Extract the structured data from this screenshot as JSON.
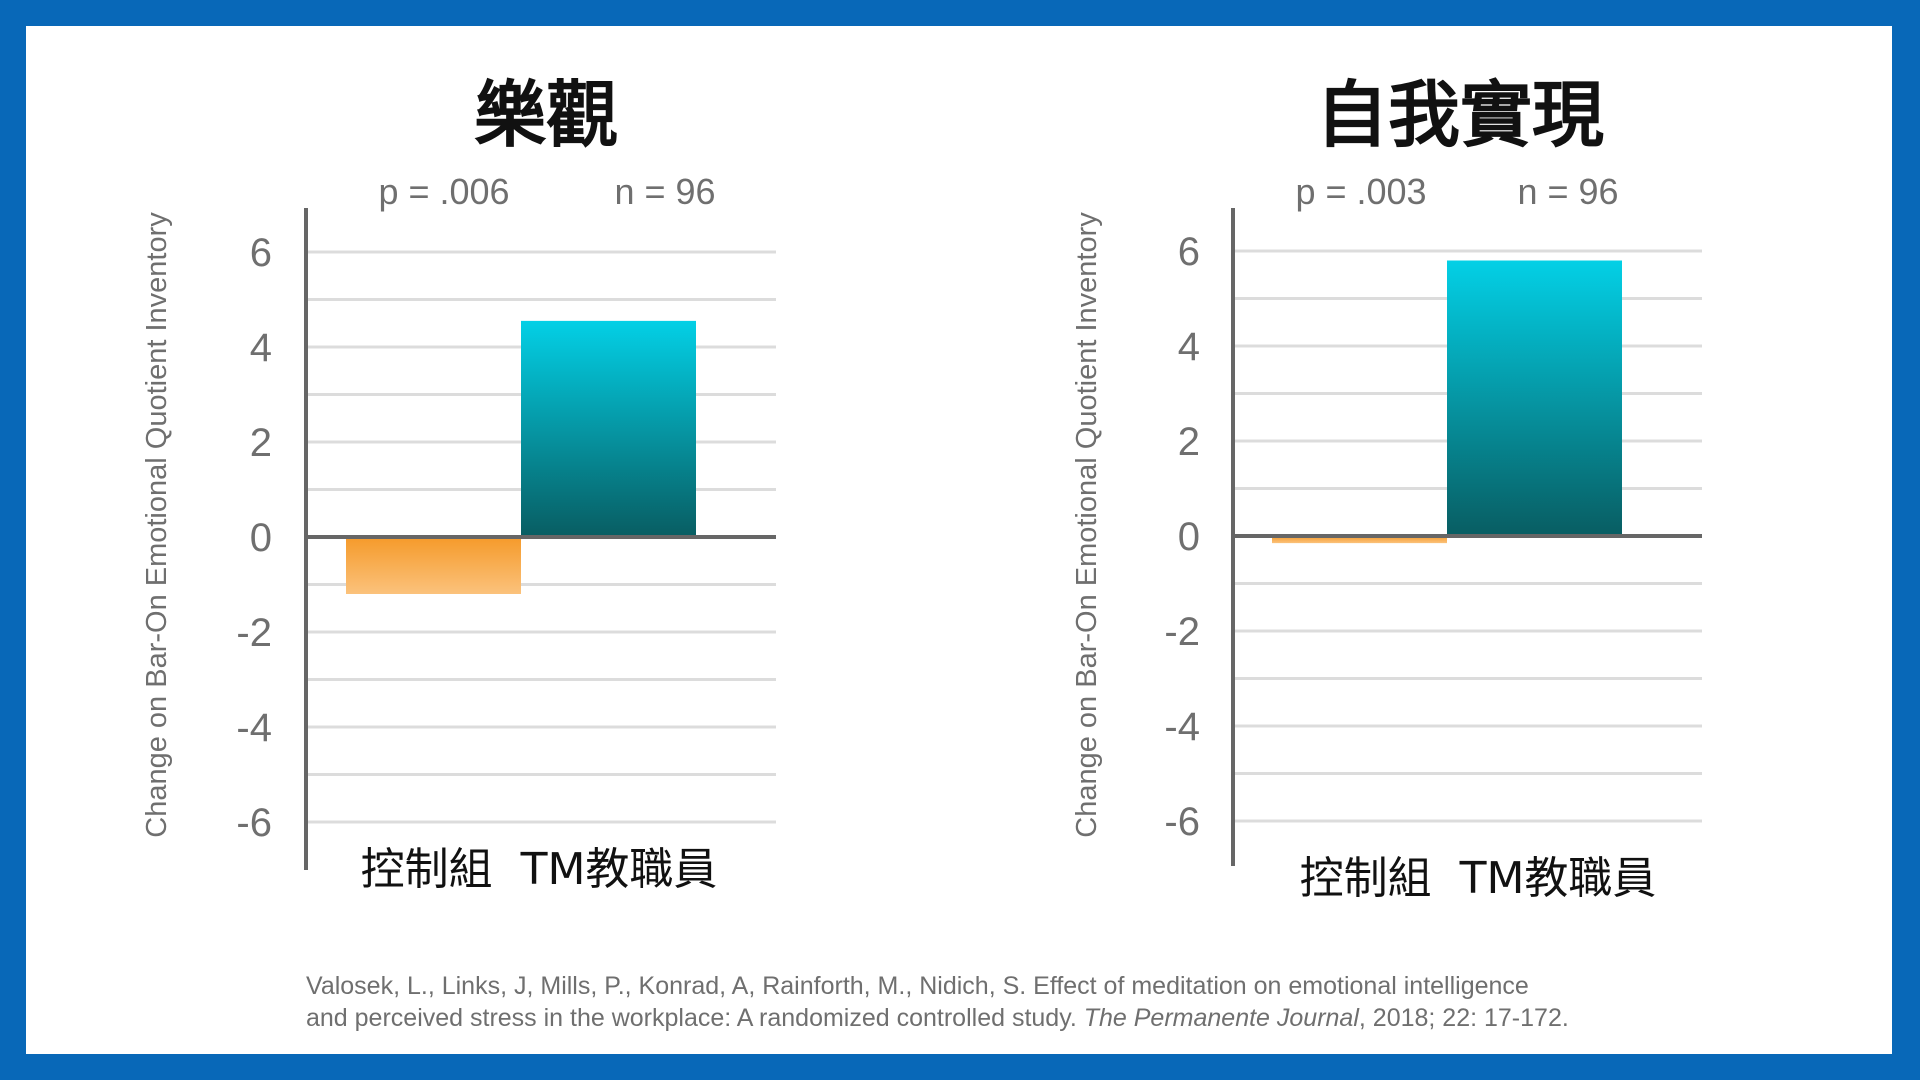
{
  "chart_data": [
    {
      "type": "bar",
      "title": "樂觀",
      "p_value": "p = .006",
      "n_value": "n = 96",
      "ylabel": "Change on Bar-On Emotional Quotient Inventory",
      "ylim": [
        -7,
        7
      ],
      "y_ticks": [
        6,
        4,
        2,
        0,
        -2,
        -4,
        -6
      ],
      "categories": [
        "控制組",
        "TM教職員"
      ],
      "category_label": "控制組  TM教職員",
      "values": [
        -1.2,
        4.55
      ]
    },
    {
      "type": "bar",
      "title": "自我實現",
      "p_value": "p = .003",
      "n_value": "n = 96",
      "ylabel": "Change on Bar-On Emotional Quotient Inventory",
      "ylim": [
        -7,
        7
      ],
      "y_ticks": [
        6,
        4,
        2,
        0,
        -2,
        -4,
        -6
      ],
      "categories": [
        "控制組",
        "TM教職員"
      ],
      "category_label": "控制組  TM教職員",
      "values": [
        -0.15,
        5.8
      ]
    }
  ],
  "citation": {
    "line1": "Valosek, L., Links, J,  Mills, P., Konrad, A, Rainforth, M., Nidich, S. Effect of meditation on emotional intelligence",
    "line2_prefix": "and perceived stress in the workplace: A randomized controlled study. ",
    "journal": "The Permanente Journal",
    "line2_suffix": ", 2018; 22: 17-172."
  },
  "colors": {
    "frame": "#0868b8",
    "control_bar_top": "#f59a2a",
    "control_bar_bottom": "#fbc27c",
    "tm_bar_top": "#03d0e6",
    "tm_bar_bottom": "#085d62",
    "gridline": "#dcdcdc",
    "axis": "#666666"
  }
}
